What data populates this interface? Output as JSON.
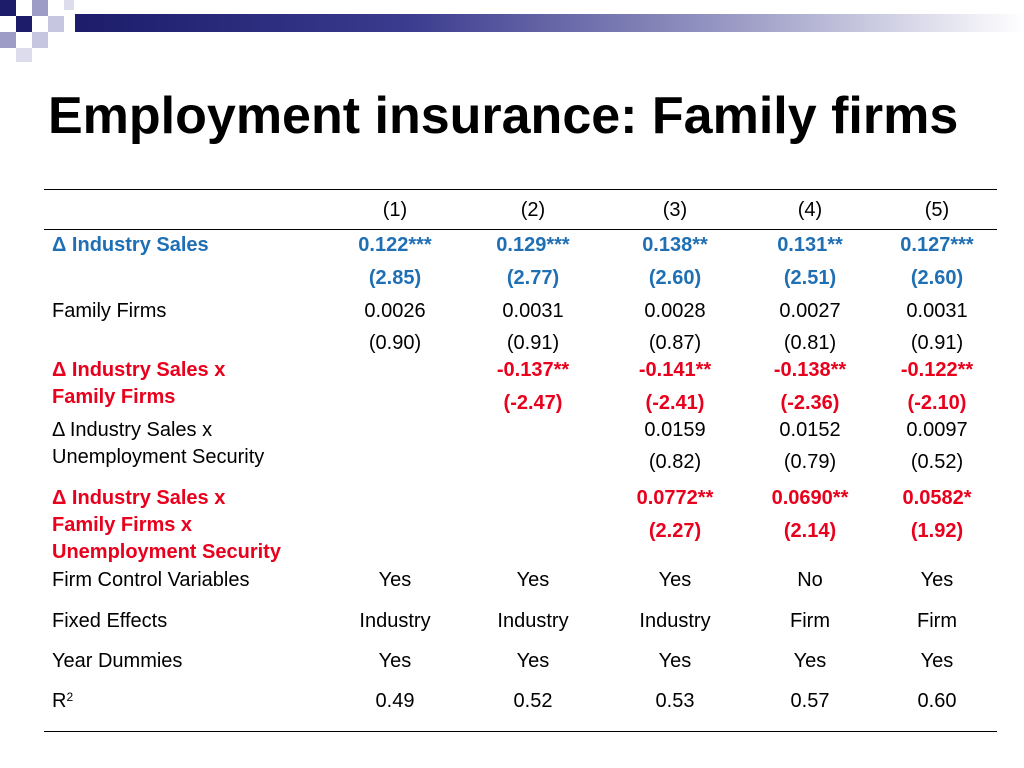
{
  "slide": {
    "title": "Employment insurance: Family firms"
  },
  "table": {
    "columns": [
      "(1)",
      "(2)",
      "(3)",
      "(4)",
      "(5)"
    ],
    "rows": {
      "industry_sales": {
        "label": "Δ Industry Sales",
        "coef": [
          "0.122***",
          "0.129***",
          "0.138**",
          "0.131**",
          "0.127***"
        ],
        "tstat": [
          "(2.85)",
          "(2.77)",
          "(2.60)",
          "(2.51)",
          "(2.60)"
        ]
      },
      "family_firms": {
        "label": "Family Firms",
        "coef": [
          "0.0026",
          "0.0031",
          "0.0028",
          "0.0027",
          "0.0031"
        ],
        "tstat": [
          "(0.90)",
          "(0.91)",
          "(0.87)",
          "(0.81)",
          "(0.91)"
        ]
      },
      "sales_x_family": {
        "label_line1": "Δ Industry Sales x",
        "label_line2": "Family Firms",
        "coef": [
          "-0.137**",
          "-0.141**",
          "-0.138**",
          "-0.122**"
        ],
        "tstat": [
          "(-2.47)",
          "(-2.41)",
          "(-2.36)",
          "(-2.10)"
        ]
      },
      "sales_x_unemp": {
        "label_line1": "Δ Industry Sales x",
        "label_line2": "Unemployment Security",
        "coef": [
          "0.0159",
          "0.0152",
          "0.0097"
        ],
        "tstat": [
          "(0.82)",
          "(0.79)",
          "(0.52)"
        ]
      },
      "sales_x_family_x_unemp": {
        "label_line1": "Δ Industry Sales x",
        "label_line2": "Family Firms x",
        "label_line3": "Unemployment Security",
        "coef": [
          "0.0772**",
          "0.0690**",
          "0.0582*"
        ],
        "tstat": [
          "(2.27)",
          "(2.14)",
          "(1.92)"
        ]
      },
      "firm_controls": {
        "label": "Firm Control Variables",
        "values": [
          "Yes",
          "Yes",
          "Yes",
          "No",
          "Yes"
        ]
      },
      "fixed_effects": {
        "label": "Fixed Effects",
        "values": [
          "Industry",
          "Industry",
          "Industry",
          "Firm",
          "Firm"
        ]
      },
      "year_dummies": {
        "label": "Year Dummies",
        "values": [
          "Yes",
          "Yes",
          "Yes",
          "Yes",
          "Yes"
        ]
      },
      "r2": {
        "label": "R",
        "label_sup": "2",
        "values": [
          "0.49",
          "0.52",
          "0.53",
          "0.57",
          "0.60"
        ]
      }
    }
  },
  "colors": {
    "highlight_blue": "#1f6fb4",
    "highlight_red": "#e8001c",
    "accent_navy": "#1c1c6b"
  }
}
